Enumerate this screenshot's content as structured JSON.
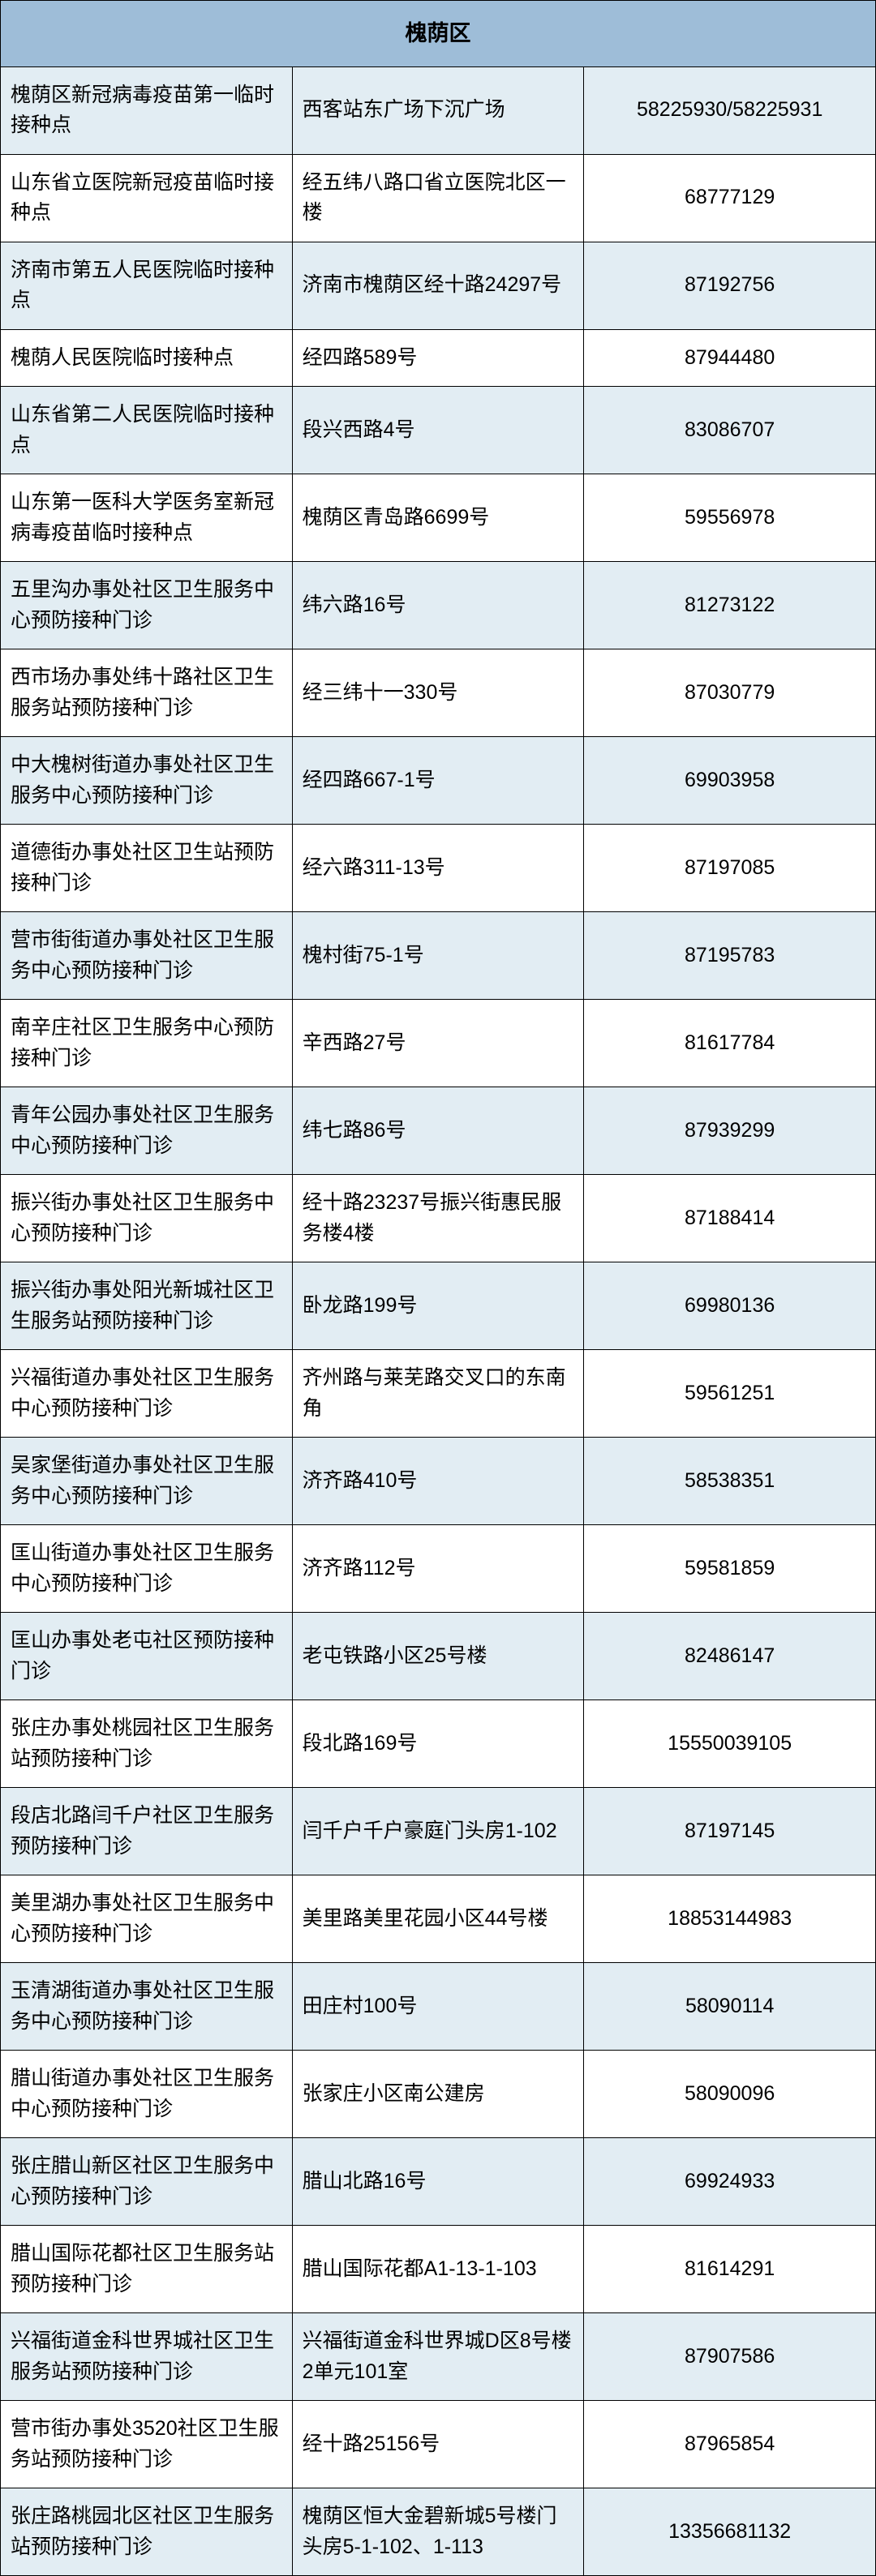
{
  "table": {
    "title": "槐荫区",
    "header_bg": "#9ebdd8",
    "even_bg": "#e2edf3",
    "odd_bg": "#ffffff",
    "border_color": "#000000",
    "title_fontsize": 27,
    "cell_fontsize": 25,
    "columns": [
      "name",
      "address",
      "phone"
    ],
    "col_widths": [
      "44%",
      "36%",
      "20%"
    ],
    "col_align": [
      "left",
      "left",
      "center"
    ],
    "rows": [
      {
        "name": "槐荫区新冠病毒疫苗第一临时接种点",
        "address": "西客站东广场下沉广场",
        "phone": "58225930/58225931"
      },
      {
        "name": "山东省立医院新冠疫苗临时接种点",
        "address": "经五纬八路口省立医院北区一楼",
        "phone": "68777129"
      },
      {
        "name": "济南市第五人民医院临时接种点",
        "address": "济南市槐荫区经十路24297号",
        "phone": "87192756"
      },
      {
        "name": "槐荫人民医院临时接种点",
        "address": "经四路589号",
        "phone": "87944480"
      },
      {
        "name": "山东省第二人民医院临时接种点",
        "address": "段兴西路4号",
        "phone": "83086707"
      },
      {
        "name": "山东第一医科大学医务室新冠病毒疫苗临时接种点",
        "address": "槐荫区青岛路6699号",
        "phone": "59556978"
      },
      {
        "name": "五里沟办事处社区卫生服务中心预防接种门诊",
        "address": "纬六路16号",
        "phone": "81273122"
      },
      {
        "name": "西市场办事处纬十路社区卫生服务站预防接种门诊",
        "address": "经三纬十一330号",
        "phone": "87030779"
      },
      {
        "name": "中大槐树街道办事处社区卫生服务中心预防接种门诊",
        "address": "经四路667-1号",
        "phone": "69903958"
      },
      {
        "name": "道德街办事处社区卫生站预防接种门诊",
        "address": "经六路311-13号",
        "phone": "87197085"
      },
      {
        "name": "营市街街道办事处社区卫生服务中心预防接种门诊",
        "address": "槐村街75-1号",
        "phone": "87195783"
      },
      {
        "name": "南辛庄社区卫生服务中心预防接种门诊",
        "address": "辛西路27号",
        "phone": "81617784"
      },
      {
        "name": "青年公园办事处社区卫生服务中心预防接种门诊",
        "address": "纬七路86号",
        "phone": "87939299"
      },
      {
        "name": "振兴街办事处社区卫生服务中心预防接种门诊",
        "address": "经十路23237号振兴街惠民服务楼4楼",
        "phone": "87188414"
      },
      {
        "name": "振兴街办事处阳光新城社区卫生服务站预防接种门诊",
        "address": "卧龙路199号",
        "phone": "69980136"
      },
      {
        "name": "兴福街道办事处社区卫生服务中心预防接种门诊",
        "address": "齐州路与莱芜路交叉口的东南角",
        "phone": "59561251"
      },
      {
        "name": "吴家堡街道办事处社区卫生服务中心预防接种门诊",
        "address": "济齐路410号",
        "phone": "58538351"
      },
      {
        "name": "匡山街道办事处社区卫生服务中心预防接种门诊",
        "address": "济齐路112号",
        "phone": "59581859"
      },
      {
        "name": "匡山办事处老屯社区预防接种门诊",
        "address": "老屯铁路小区25号楼",
        "phone": "82486147"
      },
      {
        "name": "张庄办事处桃园社区卫生服务站预防接种门诊",
        "address": "段北路169号",
        "phone": "15550039105"
      },
      {
        "name": "段店北路闫千户社区卫生服务预防接种门诊",
        "address": "闫千户千户豪庭门头房1-102",
        "phone": "87197145"
      },
      {
        "name": "美里湖办事处社区卫生服务中心预防接种门诊",
        "address": "美里路美里花园小区44号楼",
        "phone": "18853144983"
      },
      {
        "name": "玉清湖街道办事处社区卫生服务中心预防接种门诊",
        "address": "田庄村100号",
        "phone": "58090114"
      },
      {
        "name": "腊山街道办事处社区卫生服务中心预防接种门诊",
        "address": "张家庄小区南公建房",
        "phone": "58090096"
      },
      {
        "name": "张庄腊山新区社区卫生服务中心预防接种门诊",
        "address": "腊山北路16号",
        "phone": "69924933"
      },
      {
        "name": "腊山国际花都社区卫生服务站预防接种门诊",
        "address": "腊山国际花都A1-13-1-103",
        "phone": "81614291"
      },
      {
        "name": "兴福街道金科世界城社区卫生服务站预防接种门诊",
        "address": "兴福街道金科世界城D区8号楼2单元101室",
        "phone": "87907586"
      },
      {
        "name": "营市街办事处3520社区卫生服务站预防接种门诊",
        "address": "经十路25156号",
        "phone": "87965854"
      },
      {
        "name": "张庄路桃园北区社区卫生服务站预防接种门诊",
        "address": "槐荫区恒大金碧新城5号楼门头房5-1-102、1-113",
        "phone": "13356681132"
      }
    ]
  }
}
